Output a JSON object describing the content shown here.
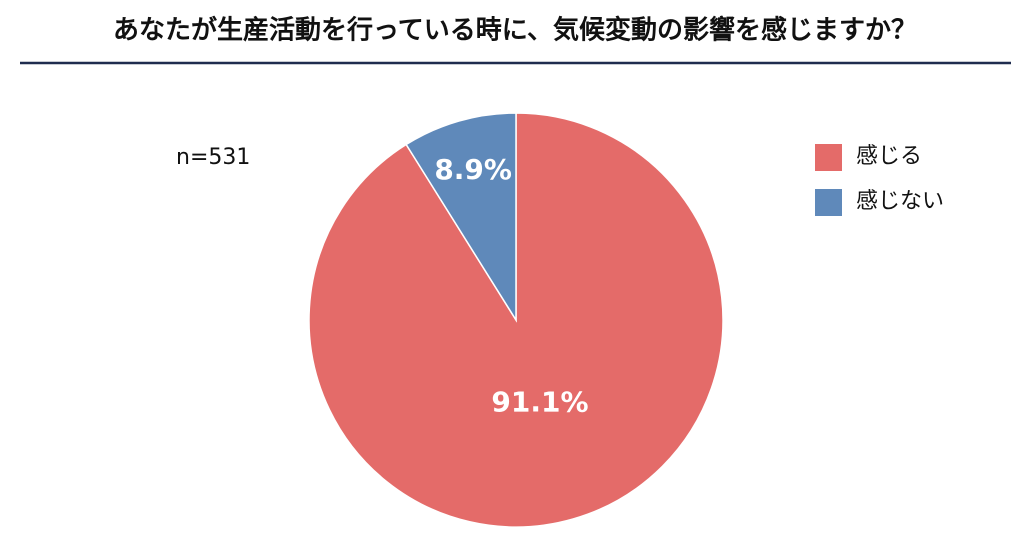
{
  "chart_data": {
    "type": "pie",
    "title": "あなたが生産活動を行っている時に、気候変動の影響を感じますか？",
    "note": "n=531",
    "categories": [
      "感じる",
      "感じない"
    ],
    "values": [
      91.1,
      8.9
    ],
    "value_labels": [
      "91.1%",
      "8.9%"
    ],
    "colors": [
      "#e46b69",
      "#5f89ba"
    ],
    "start": "top",
    "direction": "clockwise",
    "legend": "right"
  }
}
